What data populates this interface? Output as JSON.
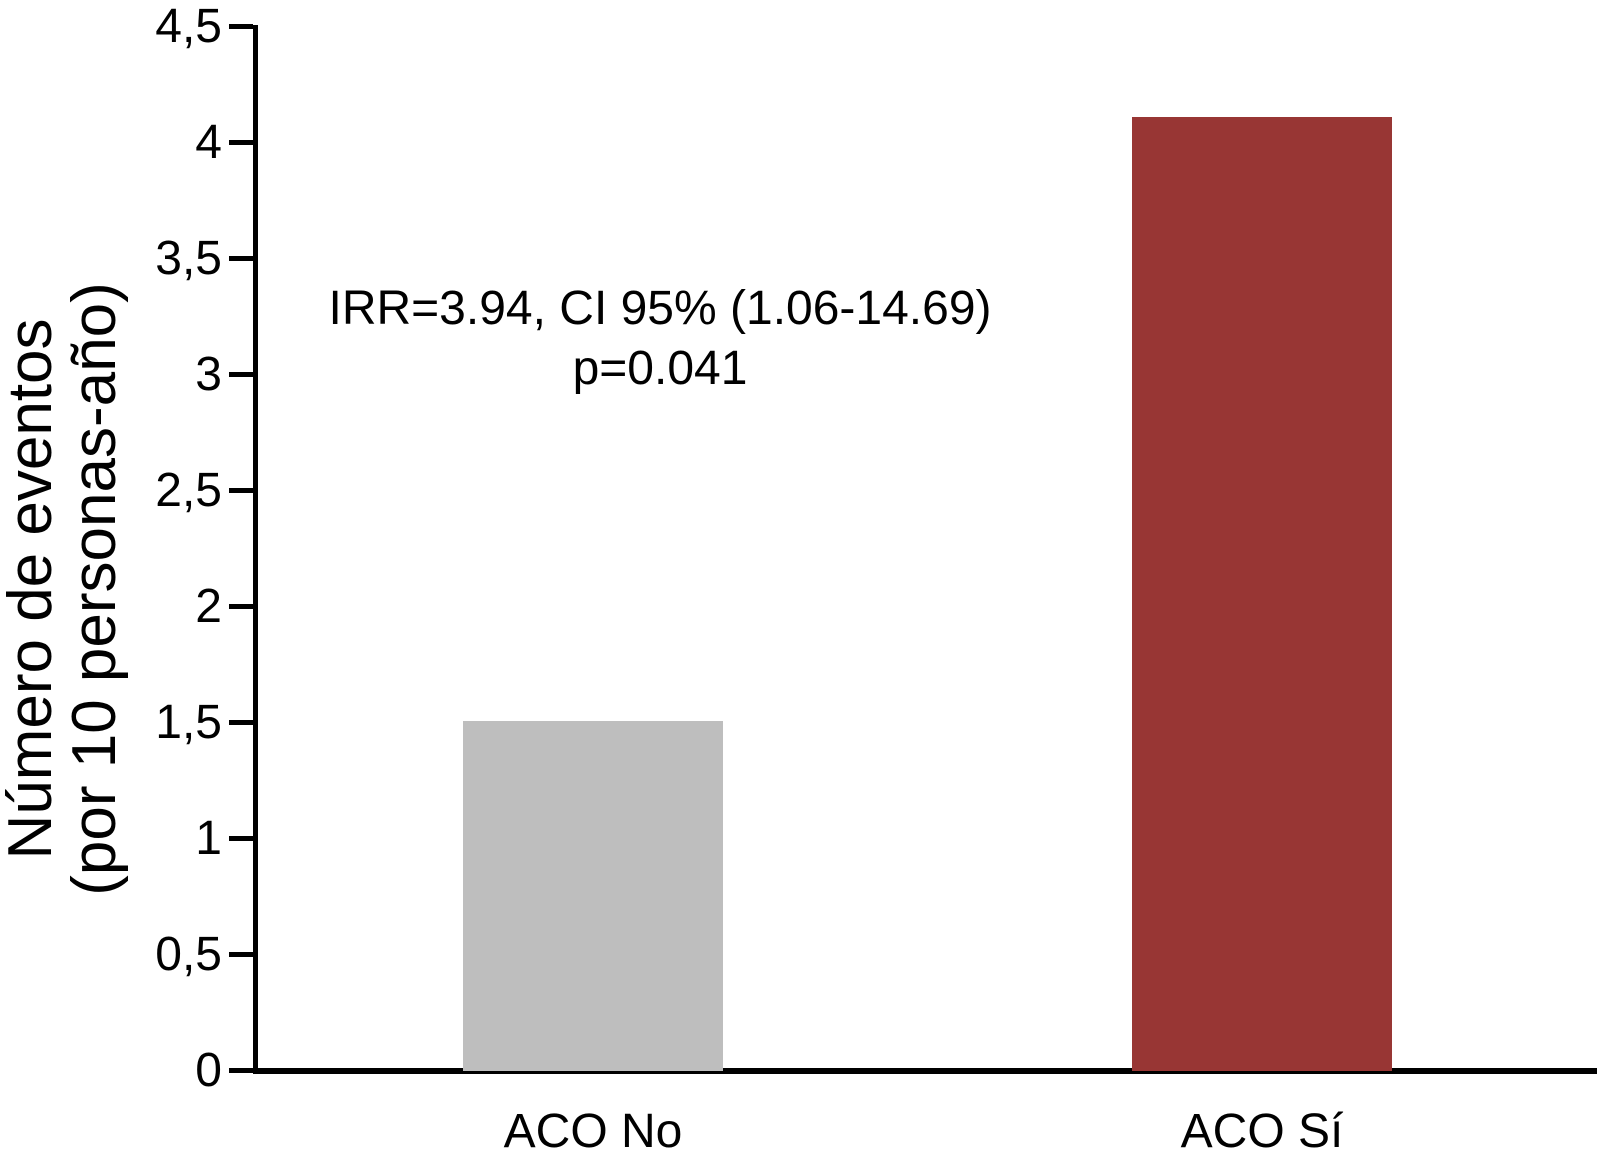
{
  "chart_data": {
    "type": "bar",
    "categories": [
      "ACO No",
      "ACO Sí"
    ],
    "values": [
      1.51,
      4.11
    ],
    "bar_colors": [
      "#BEBEBE",
      "#983634"
    ],
    "title": "",
    "xlabel": "",
    "ylabel": "Número de eventos (por 10 personas-año)",
    "ylabel_lines": [
      "Número de eventos",
      "(por 10 personas-año)"
    ],
    "ylim": [
      0,
      4.5
    ],
    "yticks": [
      0,
      0.5,
      1,
      1.5,
      2,
      2.5,
      3,
      3.5,
      4,
      4.5
    ],
    "ytick_labels": [
      "0",
      "0,5",
      "1",
      "1,5",
      "2",
      "2,5",
      "3",
      "3,5",
      "4",
      "4,5"
    ],
    "annotation_lines": [
      "IRR=3.94, CI 95% (1.06-14.69)",
      "p=0.041"
    ],
    "grid": false,
    "legend": "none",
    "axis_color": "#000000",
    "background_color": "#ffffff"
  }
}
